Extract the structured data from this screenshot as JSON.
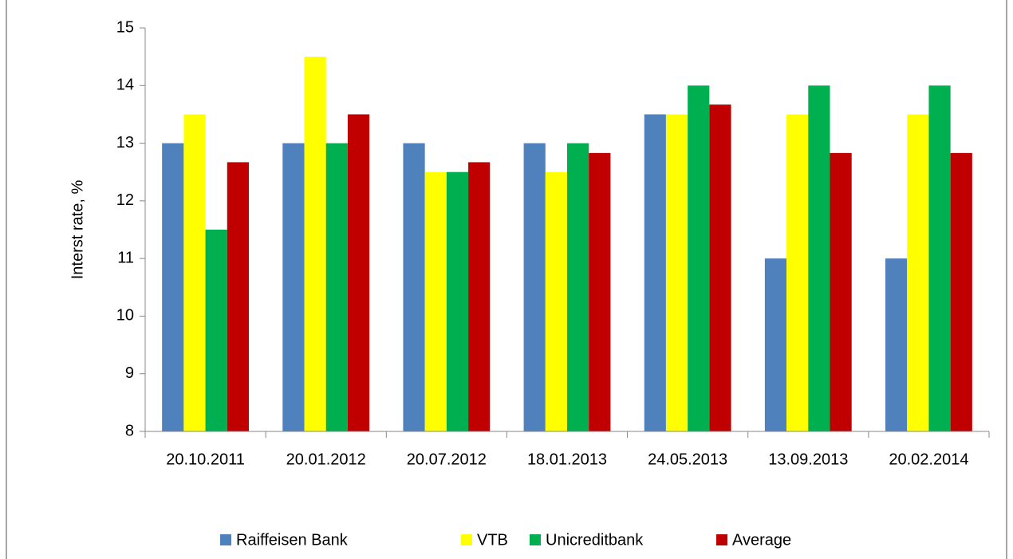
{
  "chart_data": {
    "type": "bar",
    "ylabel": "Interst rate, %",
    "categories": [
      "20.10.2011",
      "20.01.2012",
      "20.07.2012",
      "18.01.2013",
      "24.05.2013",
      "13.09.2013",
      "20.02.2014"
    ],
    "series": [
      {
        "name": "Raiffeisen Bank",
        "color": "#4f81bd",
        "values": [
          13,
          13,
          13,
          13,
          13.5,
          11,
          11
        ]
      },
      {
        "name": "VTB",
        "color": "#ffff00",
        "values": [
          13.5,
          14.5,
          12.5,
          12.5,
          13.5,
          13.5,
          13.5
        ]
      },
      {
        "name": "Unicreditbank",
        "color": "#00b050",
        "values": [
          11.5,
          13,
          12.5,
          13,
          14,
          14,
          14
        ]
      },
      {
        "name": "Average",
        "color": "#c00000",
        "values": [
          12.67,
          13.5,
          12.67,
          12.83,
          13.67,
          12.83,
          12.83
        ]
      }
    ],
    "ylim": [
      8,
      15
    ],
    "yticks": [
      8,
      9,
      10,
      11,
      12,
      13,
      14,
      15
    ],
    "legend": "bottom"
  }
}
